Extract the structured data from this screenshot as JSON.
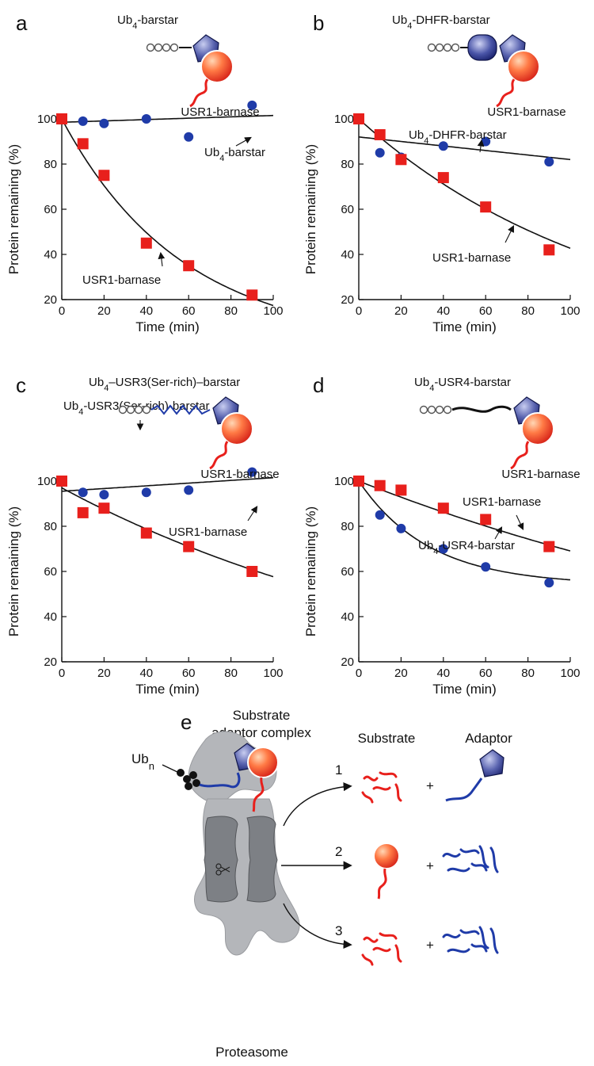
{
  "panels": [
    {
      "label": "a",
      "construct_label": "Ub",
      "construct_sub": "4",
      "construct_suffix": "-barstar",
      "substrate_label": "USR1-barnase",
      "linker": "none",
      "ann_blue_main": "Ub",
      "ann_blue_sub": "4",
      "ann_blue_suffix": "-barstar",
      "ann_red": "USR1-barnase"
    },
    {
      "label": "b",
      "construct_label": "Ub",
      "construct_sub": "4",
      "construct_suffix": "-DHFR-barstar",
      "substrate_label": "USR1-barnase",
      "linker": "dhfr",
      "ann_blue_main": "Ub",
      "ann_blue_sub": "4",
      "ann_blue_suffix": "-DHFR-barstar",
      "ann_red": "USR1-barnase"
    },
    {
      "label": "c",
      "construct_label": "Ub",
      "construct_sub": "4",
      "construct_suffix": "–USR3(Ser-rich)–barstar",
      "substrate_label": "USR1-barnase",
      "linker": "zigzag",
      "ann_blue_main": "Ub",
      "ann_blue_sub": "4",
      "ann_blue_suffix": "-USR3(Ser-rich)-barstar",
      "ann_red": "USR1-barnase"
    },
    {
      "label": "d",
      "construct_label": "Ub",
      "construct_sub": "4",
      "construct_suffix": "-USR4-barstar",
      "substrate_label": "USR1-barnase",
      "linker": "wavy",
      "ann_blue_main": "Ub",
      "ann_blue_sub": "4",
      "ann_blue_suffix": "-USR4-barstar",
      "ann_red": "USR1-barnase"
    }
  ],
  "chart_data": [
    {
      "type": "scatter",
      "panel": "a",
      "xlabel": "Time (min)",
      "ylabel": "Protein remaining (%)",
      "xlim": [
        0,
        100
      ],
      "ylim": [
        20,
        100
      ],
      "xticks": [
        0,
        20,
        40,
        60,
        80,
        100
      ],
      "yticks": [
        20,
        40,
        60,
        80,
        100
      ],
      "series": [
        {
          "name": "Ub4-barstar",
          "color": "#1f3ba8",
          "marker": "circle",
          "x": [
            0,
            10,
            20,
            40,
            60,
            90
          ],
          "y": [
            100,
            99,
            98,
            100,
            92,
            106
          ],
          "fit": {
            "type": "linear",
            "a": 98.5,
            "b": 0.03
          }
        },
        {
          "name": "USR1-barnase",
          "color": "#e8201c",
          "marker": "square",
          "x": [
            0,
            10,
            20,
            40,
            60,
            90
          ],
          "y": [
            100,
            89,
            75,
            45,
            35,
            22
          ],
          "fit": {
            "type": "exp",
            "y0": 100,
            "k": 0.0175
          }
        }
      ]
    },
    {
      "type": "scatter",
      "panel": "b",
      "xlabel": "Time (min)",
      "ylabel": "Protein remaining (%)",
      "xlim": [
        0,
        100
      ],
      "ylim": [
        20,
        100
      ],
      "xticks": [
        0,
        20,
        40,
        60,
        80,
        100
      ],
      "yticks": [
        20,
        40,
        60,
        80,
        100
      ],
      "series": [
        {
          "name": "Ub4-DHFR-barstar",
          "color": "#1f3ba8",
          "marker": "circle",
          "x": [
            0,
            10,
            20,
            40,
            60,
            90
          ],
          "y": [
            100,
            85,
            83,
            88,
            90,
            81
          ],
          "fit": {
            "type": "linear",
            "a": 92,
            "b": -0.1
          }
        },
        {
          "name": "USR1-barnase",
          "color": "#e8201c",
          "marker": "square",
          "x": [
            0,
            10,
            20,
            40,
            60,
            90
          ],
          "y": [
            100,
            93,
            82,
            74,
            61,
            42
          ],
          "fit": {
            "type": "exp",
            "y0": 100,
            "k": 0.0085
          }
        }
      ]
    },
    {
      "type": "scatter",
      "panel": "c",
      "xlabel": "Time (min)",
      "ylabel": "Protein remaining (%)",
      "xlim": [
        0,
        100
      ],
      "ylim": [
        20,
        100
      ],
      "xticks": [
        0,
        20,
        40,
        60,
        80,
        100
      ],
      "yticks": [
        20,
        40,
        60,
        80,
        100
      ],
      "series": [
        {
          "name": "Ub4-USR3(Ser-rich)-barstar",
          "color": "#1f3ba8",
          "marker": "circle",
          "x": [
            0,
            10,
            20,
            40,
            60,
            90
          ],
          "y": [
            100,
            95,
            94,
            95,
            96,
            104
          ],
          "fit": {
            "type": "linear",
            "a": 95.5,
            "b": 0.06
          }
        },
        {
          "name": "USR1-barnase",
          "color": "#e8201c",
          "marker": "square",
          "x": [
            0,
            10,
            20,
            40,
            60,
            90
          ],
          "y": [
            100,
            86,
            88,
            77,
            71,
            60
          ],
          "fit": {
            "type": "exp",
            "y0": 97,
            "k": 0.0052
          }
        }
      ]
    },
    {
      "type": "scatter",
      "panel": "d",
      "xlabel": "Time (min)",
      "ylabel": "Protein remaining (%)",
      "xlim": [
        0,
        100
      ],
      "ylim": [
        20,
        100
      ],
      "xticks": [
        0,
        20,
        40,
        60,
        80,
        100
      ],
      "yticks": [
        20,
        40,
        60,
        80,
        100
      ],
      "series": [
        {
          "name": "USR1-barnase",
          "color": "#e8201c",
          "marker": "square",
          "x": [
            0,
            10,
            20,
            40,
            60,
            90
          ],
          "y": [
            100,
            98,
            96,
            88,
            83,
            71
          ],
          "fit": {
            "type": "exp",
            "y0": 100,
            "k": 0.0037
          }
        },
        {
          "name": "Ub4-USR4-barstar",
          "color": "#1f3ba8",
          "marker": "circle",
          "x": [
            0,
            10,
            20,
            40,
            60,
            90
          ],
          "y": [
            100,
            85,
            79,
            70,
            62,
            55
          ],
          "fit": {
            "type": "expbase",
            "base": 54,
            "amp": 46,
            "k": 0.03
          }
        }
      ]
    }
  ],
  "diagram": {
    "label": "e",
    "complex_title_1": "Substrate",
    "complex_title_2": "adaptor complex",
    "ub_label": "Ub",
    "ub_sub": "n",
    "col_substrate": "Substrate",
    "col_adaptor": "Adaptor",
    "path1": "1",
    "path2": "2",
    "path3": "3",
    "plus": "+",
    "proteasome_label": "Proteasome",
    "colors": {
      "red": "#e8201c",
      "blue": "#1f3ba8",
      "gray": "#b4b6ba",
      "dark": "#7d8085"
    }
  }
}
